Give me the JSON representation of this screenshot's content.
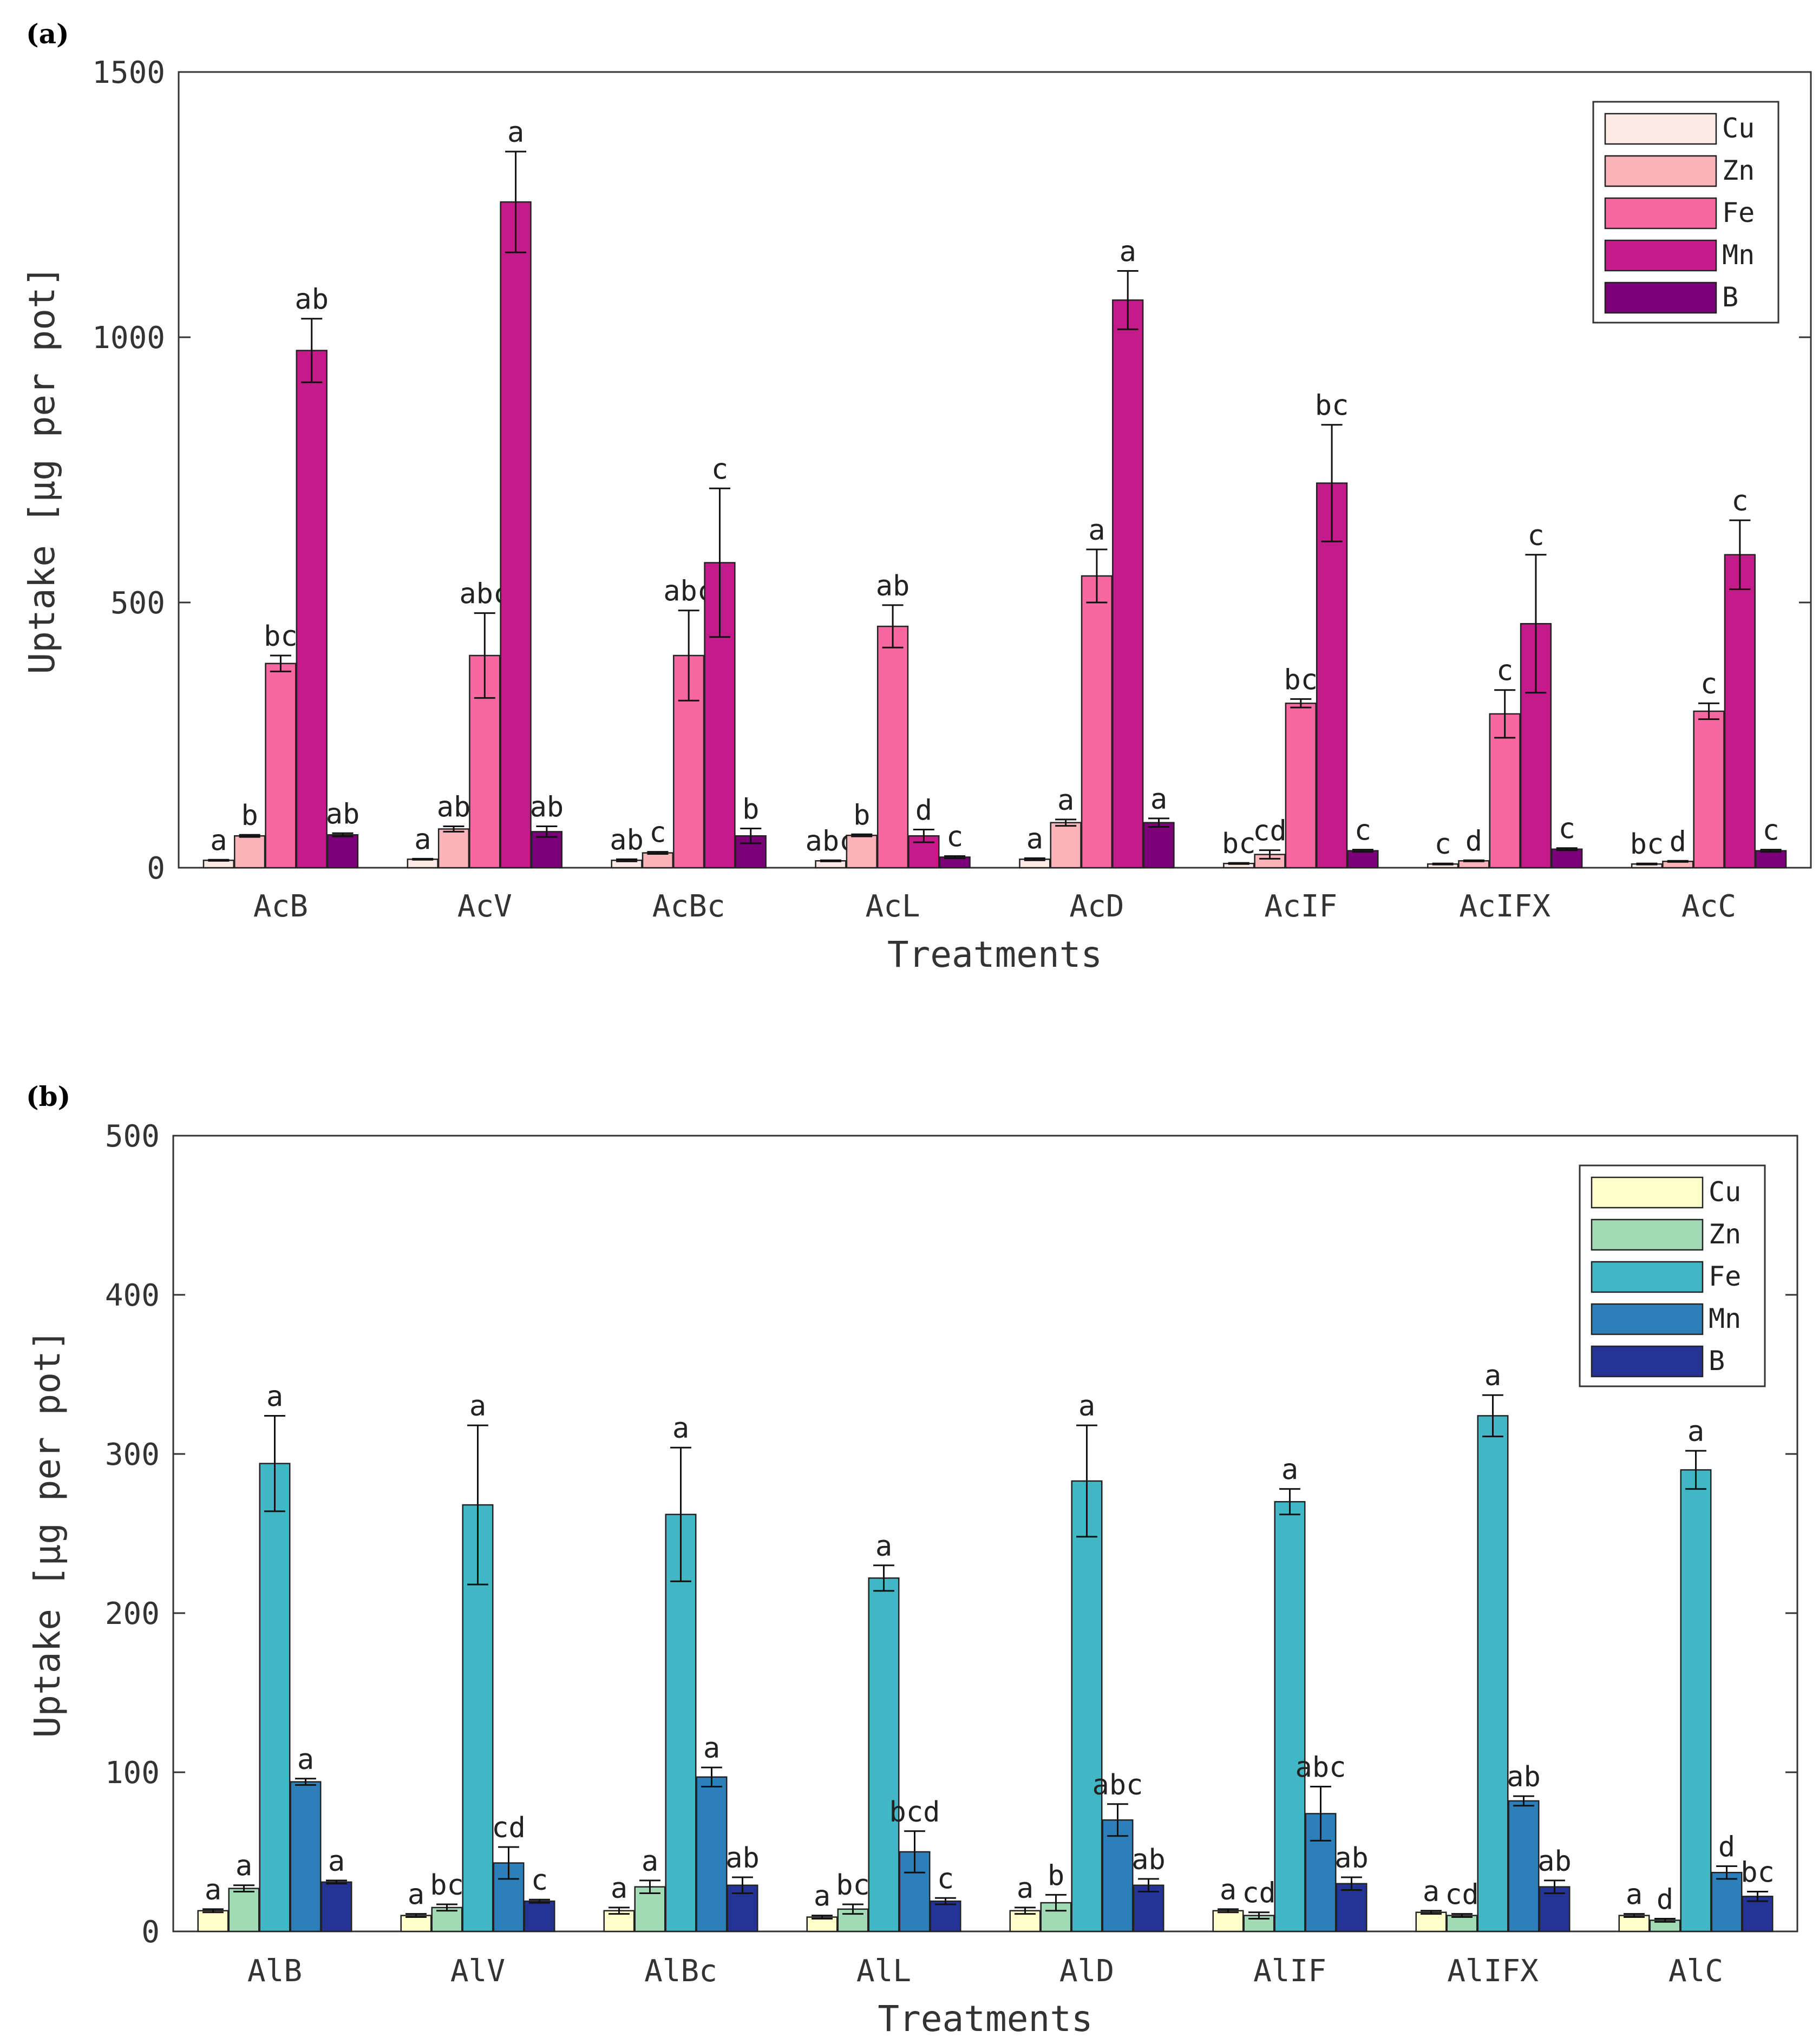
{
  "chart_data": [
    {
      "panel": "(a)",
      "type": "bar",
      "xlabel": "Treatments",
      "ylabel": "Uptake [µg per pot]",
      "ylim": [
        0,
        1500
      ],
      "yticks": [
        0,
        500,
        1000,
        1500
      ],
      "categories": [
        "AcB",
        "AcV",
        "AcBc",
        "AcL",
        "AcD",
        "AcIF",
        "AcIFX",
        "AcC"
      ],
      "legend_position": "top-right",
      "series": [
        {
          "name": "Cu",
          "color": "#fdeae6",
          "values": [
            14,
            16,
            14,
            13,
            16,
            8,
            7,
            7
          ],
          "errors": [
            1,
            1,
            2,
            1,
            2,
            1,
            1,
            1
          ],
          "letters": [
            "a",
            "a",
            "ab",
            "abc",
            "a",
            "bc",
            "c",
            "bc"
          ]
        },
        {
          "name": "Zn",
          "color": "#fbb4b9",
          "values": [
            60,
            73,
            28,
            61,
            85,
            25,
            13,
            12
          ],
          "errors": [
            2,
            5,
            2,
            2,
            6,
            8,
            1,
            1
          ],
          "letters": [
            "b",
            "ab",
            "c",
            "b",
            "a",
            "cd",
            "d",
            "d"
          ]
        },
        {
          "name": "Fe",
          "color": "#f768a1",
          "values": [
            385,
            400,
            400,
            455,
            550,
            310,
            290,
            295
          ],
          "errors": [
            15,
            80,
            85,
            40,
            50,
            8,
            45,
            15
          ],
          "letters": [
            "bc",
            "abc",
            "abc",
            "ab",
            "a",
            "bc",
            "c",
            "c"
          ]
        },
        {
          "name": "Mn",
          "color": "#c51b8a",
          "values": [
            975,
            1255,
            575,
            60,
            1070,
            725,
            460,
            590
          ],
          "errors": [
            60,
            95,
            140,
            12,
            55,
            110,
            130,
            65
          ],
          "letters": [
            "ab",
            "a",
            "c",
            "d",
            "a",
            "bc",
            "c",
            "c"
          ]
        },
        {
          "name": "B",
          "color": "#7a0177",
          "values": [
            62,
            68,
            60,
            20,
            85,
            32,
            35,
            32
          ],
          "errors": [
            3,
            10,
            14,
            2,
            8,
            2,
            2,
            2
          ],
          "letters": [
            "ab",
            "ab",
            "b",
            "c",
            "a",
            "c",
            "c",
            "c"
          ]
        }
      ]
    },
    {
      "panel": "(b)",
      "type": "bar",
      "xlabel": "Treatments",
      "ylabel": "Uptake [µg per pot]",
      "ylim": [
        0,
        500
      ],
      "yticks": [
        0,
        100,
        200,
        300,
        400,
        500
      ],
      "categories": [
        "AlB",
        "AlV",
        "AlBc",
        "AlL",
        "AlD",
        "AlIF",
        "AlIFX",
        "AlC"
      ],
      "legend_position": "top-right",
      "series": [
        {
          "name": "Cu",
          "color": "#ffffcc",
          "values": [
            13,
            10,
            13,
            9,
            13,
            13,
            12,
            10
          ],
          "errors": [
            1,
            1,
            2,
            1,
            2,
            1,
            1,
            1
          ],
          "letters": [
            "a",
            "a",
            "a",
            "a",
            "a",
            "a",
            "a",
            "a"
          ]
        },
        {
          "name": "Zn",
          "color": "#a1dab4",
          "values": [
            27,
            15,
            28,
            14,
            18,
            10,
            10,
            7
          ],
          "errors": [
            2,
            2,
            4,
            3,
            5,
            2,
            1,
            1
          ],
          "letters": [
            "a",
            "bc",
            "a",
            "bc",
            "b",
            "cd",
            "cd",
            "d"
          ]
        },
        {
          "name": "Fe",
          "color": "#41b6c4",
          "values": [
            294,
            268,
            262,
            222,
            283,
            270,
            324,
            290
          ],
          "errors": [
            30,
            50,
            42,
            8,
            35,
            8,
            13,
            12
          ],
          "letters": [
            "a",
            "a",
            "a",
            "a",
            "a",
            "a",
            "a",
            "a"
          ]
        },
        {
          "name": "Mn",
          "color": "#2c7fb8",
          "values": [
            94,
            43,
            97,
            50,
            70,
            74,
            82,
            37
          ],
          "errors": [
            2,
            10,
            6,
            13,
            10,
            17,
            3,
            4
          ],
          "letters": [
            "a",
            "cd",
            "a",
            "bcd",
            "abc",
            "abc",
            "ab",
            "d"
          ]
        },
        {
          "name": "B",
          "color": "#253494",
          "values": [
            31,
            19,
            29,
            19,
            29,
            30,
            28,
            22
          ],
          "errors": [
            1,
            1,
            5,
            2,
            4,
            4,
            4,
            3
          ],
          "letters": [
            "a",
            "c",
            "ab",
            "c",
            "ab",
            "ab",
            "ab",
            "bc"
          ]
        }
      ]
    }
  ]
}
